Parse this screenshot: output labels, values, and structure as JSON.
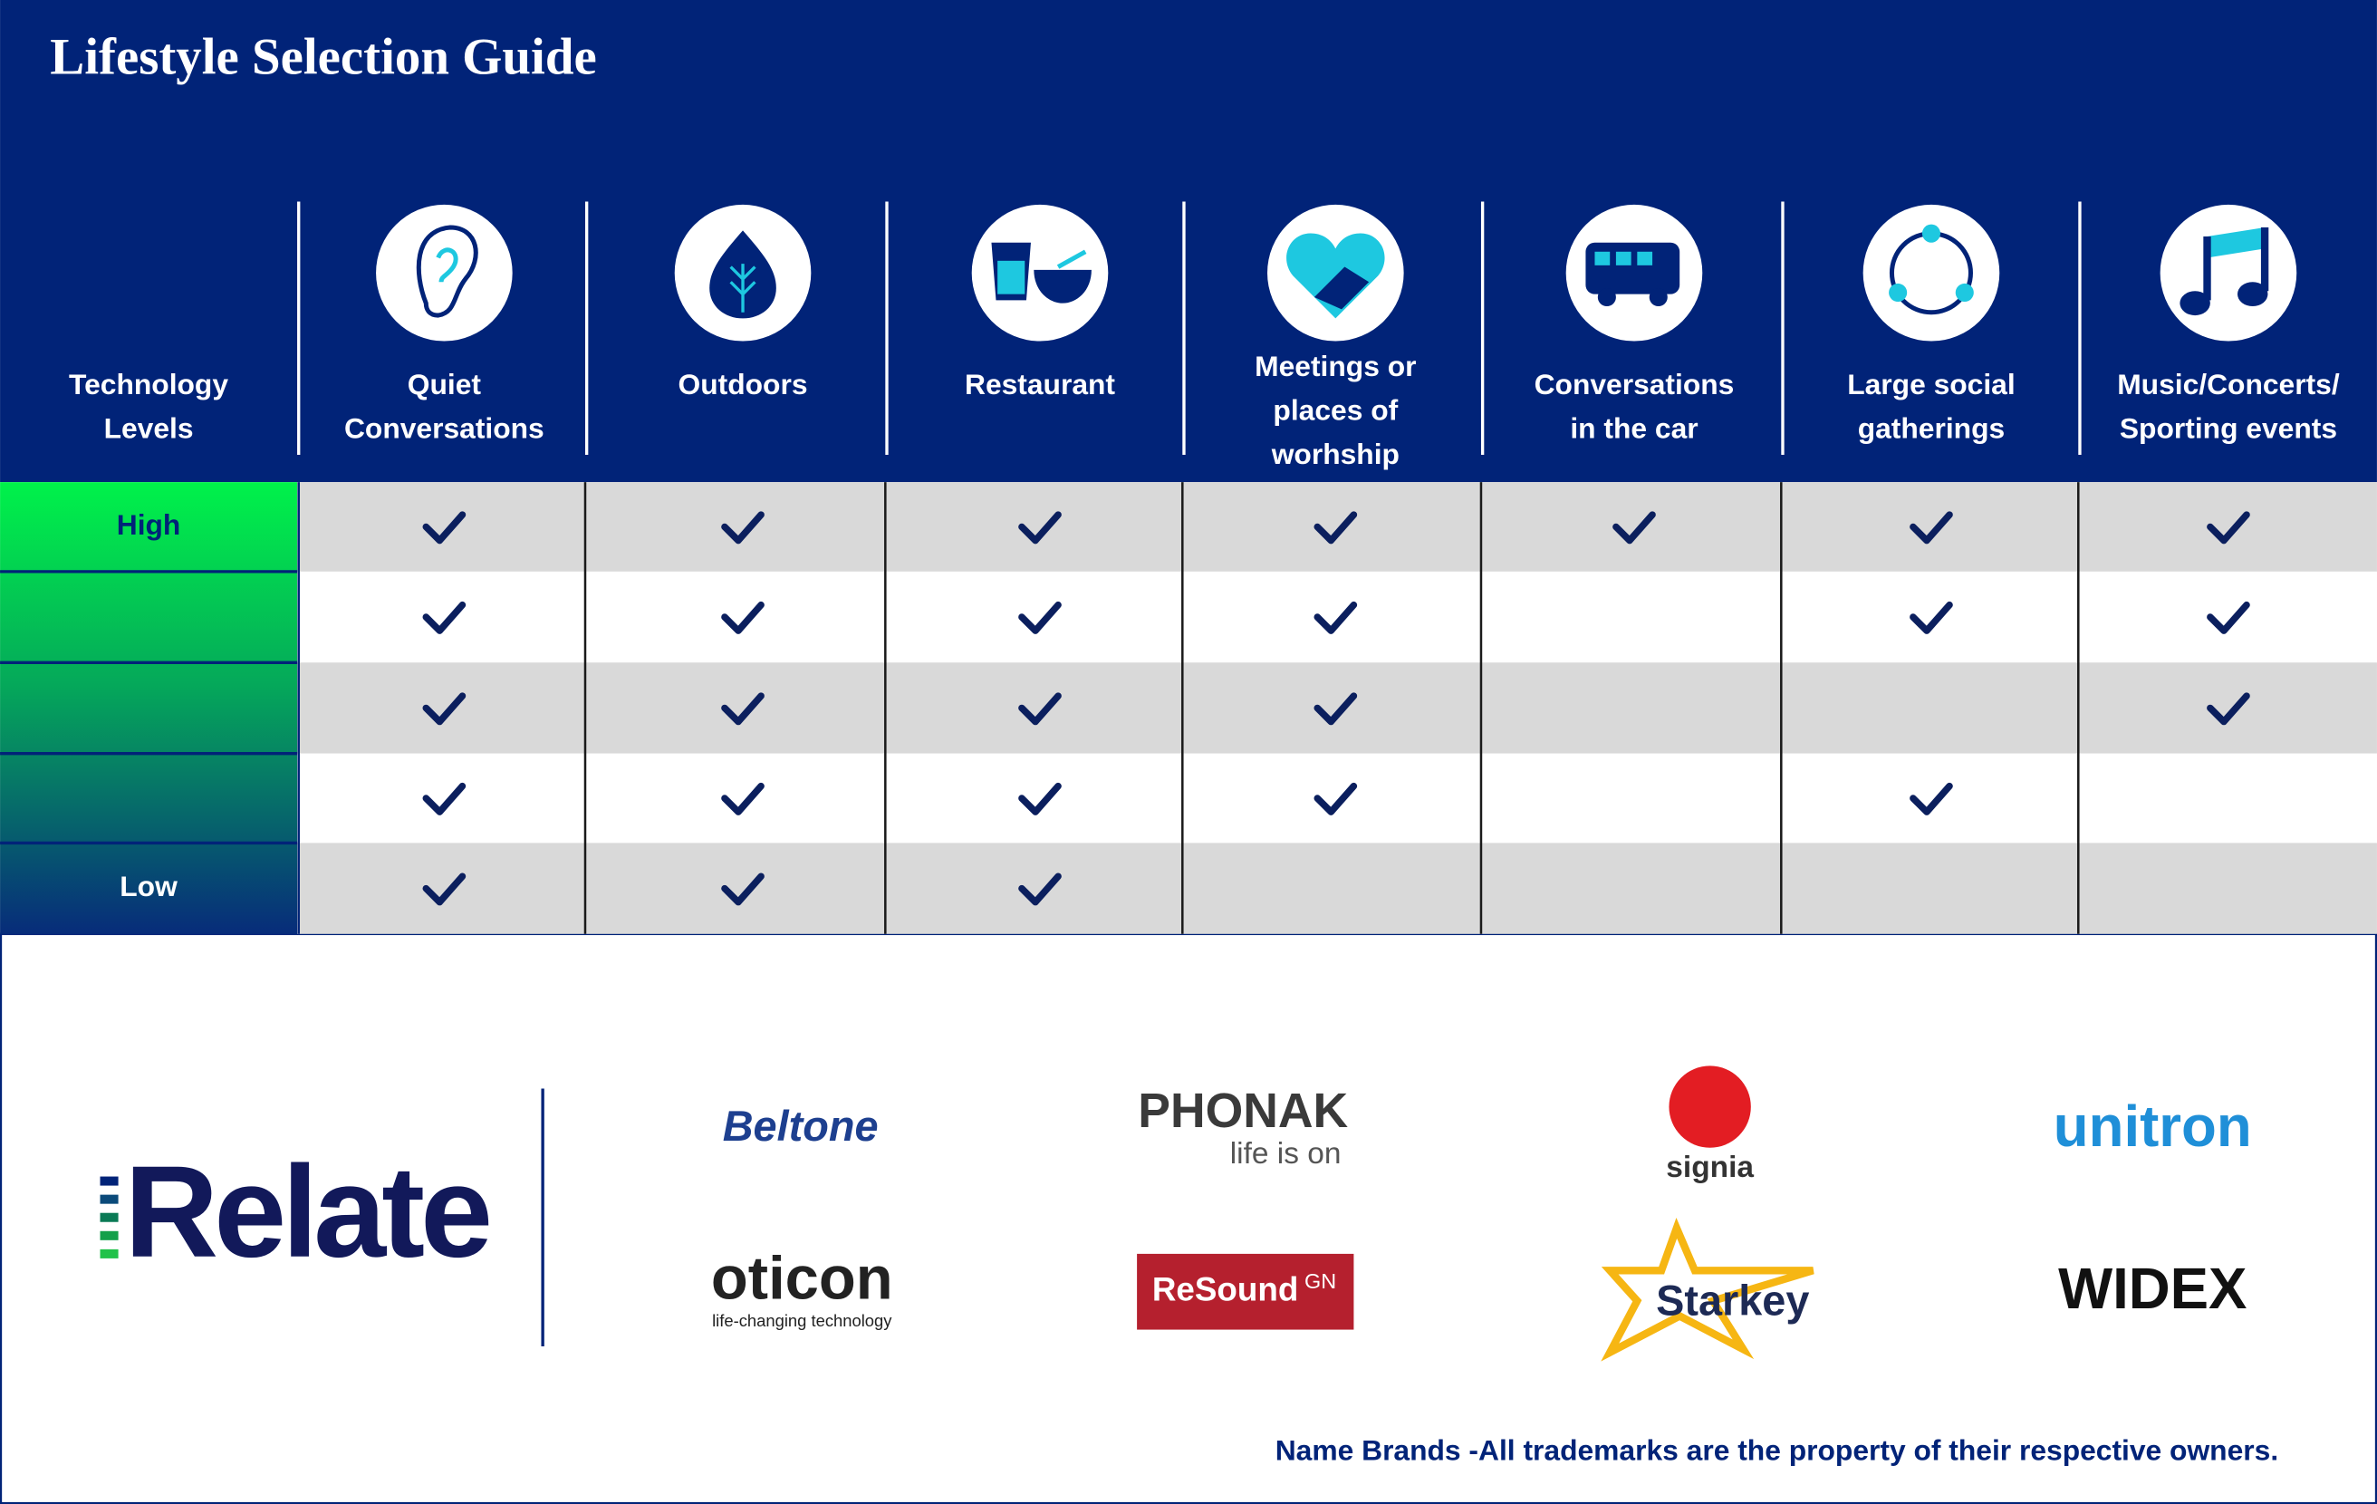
{
  "header": {
    "title": "Lifestyle Selection Guide"
  },
  "table": {
    "corner": [
      "Technology",
      "Levels"
    ],
    "columns": [
      [
        "Quiet",
        "Conversations"
      ],
      [
        "Outdoors"
      ],
      [
        "Restaurant"
      ],
      [
        "Meetings or",
        "places of",
        "worhship"
      ],
      [
        "Conversations",
        "in the car"
      ],
      [
        "Large social",
        "gatherings"
      ],
      [
        "Music/Concerts/",
        "Sporting events"
      ]
    ],
    "row_labels": [
      "High",
      null,
      null,
      null,
      "Low"
    ],
    "rows": [
      [
        true,
        true,
        true,
        true,
        true,
        true,
        true
      ],
      [
        true,
        true,
        true,
        true,
        false,
        true,
        true
      ],
      [
        true,
        true,
        true,
        true,
        false,
        false,
        true
      ],
      [
        true,
        true,
        true,
        true,
        false,
        true,
        false
      ],
      [
        true,
        true,
        true,
        false,
        false,
        false,
        false
      ]
    ]
  },
  "brands": {
    "house": "Relate",
    "names": [
      {
        "name": "Beltone"
      },
      {
        "name": "PHONAK",
        "tagline": "life is on"
      },
      {
        "name": "signia"
      },
      {
        "name": "unitron"
      },
      {
        "name": "oticon",
        "tagline": "life-changing technology"
      },
      {
        "name": "ReSound",
        "tagline": "GN"
      },
      {
        "name": "Starkey"
      },
      {
        "name": "WIDEX"
      }
    ]
  },
  "footer": {
    "note": "Name Brands -All trademarks are the property of their respective owners."
  }
}
